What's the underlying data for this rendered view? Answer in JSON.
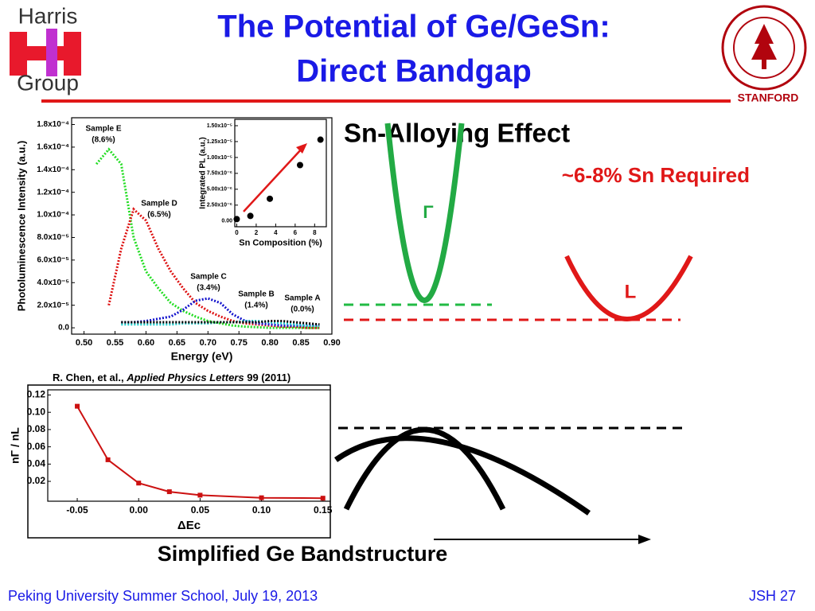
{
  "header": {
    "title_lines": [
      "The Potential of Ge/GeSn:",
      "Direct Bandgap"
    ],
    "logo_left": [
      "Harris",
      "Group"
    ],
    "logo_right": "STANFORD"
  },
  "section_title": "Sn-Alloying Effect",
  "note": "~6-8% Sn Required",
  "band_labels": {
    "gamma": "Γ",
    "l": "L"
  },
  "citation": {
    "authors": "R. Chen, et al.,",
    "journal": "Applied Physics Letters",
    "details": "99 (2011)"
  },
  "caption": "Simplified Ge Bandstructure",
  "footer": {
    "left": "Peking University Summer School, July 19, 2013",
    "right": "JSH 27"
  },
  "chart_data": [
    {
      "type": "line",
      "xlabel": "Energy (eV)",
      "ylabel": "Photoluminescence Intensity (a.u.)",
      "x": [
        0.5,
        0.52,
        0.54,
        0.56,
        0.58,
        0.6,
        0.62,
        0.64,
        0.66,
        0.68,
        0.7,
        0.72,
        0.74,
        0.76,
        0.78,
        0.8,
        0.82,
        0.84,
        0.86,
        0.88
      ],
      "series": [
        {
          "name": "Sample E",
          "annotation": "(8.6%)",
          "color": "#22dd22",
          "values": [
            null,
            0.000145,
            0.000158,
            0.000145,
            8e-05,
            5e-05,
            3.5e-05,
            2.2e-05,
            1.5e-05,
            1e-05,
            6e-06,
            4e-06,
            2e-06,
            1e-06,
            5e-07,
            0,
            0,
            0,
            0,
            0
          ]
        },
        {
          "name": "Sample D",
          "annotation": "(6.5%)",
          "color": "#dd1111",
          "values": [
            null,
            null,
            2e-05,
            7e-05,
            0.000105,
            9.5e-05,
            7e-05,
            5e-05,
            3.5e-05,
            2.2e-05,
            1.5e-05,
            1e-05,
            6e-06,
            4e-06,
            3e-06,
            2e-06,
            1e-06,
            1e-06,
            0,
            0
          ]
        },
        {
          "name": "Sample C",
          "annotation": "(3.4%)",
          "color": "#1111cc",
          "values": [
            null,
            null,
            null,
            5e-06,
            5e-06,
            6e-06,
            8e-06,
            1e-05,
            1.6e-05,
            2.4e-05,
            2.6e-05,
            2.2e-05,
            1.2e-05,
            6e-06,
            4e-06,
            3e-06,
            2e-06,
            2e-06,
            2e-06,
            2e-06
          ]
        },
        {
          "name": "Sample B",
          "annotation": "(1.4%)",
          "color": "#22cccc",
          "values": [
            null,
            null,
            null,
            3e-06,
            3e-06,
            3e-06,
            3e-06,
            3e-06,
            4e-06,
            4e-06,
            4e-06,
            5e-06,
            5e-06,
            6e-06,
            6e-06,
            5e-06,
            4e-06,
            3e-06,
            2e-06,
            2e-06
          ]
        },
        {
          "name": "Sample A",
          "annotation": "(0.0%)",
          "color": "#000000",
          "values": [
            null,
            null,
            null,
            5e-06,
            5e-06,
            5e-06,
            5e-06,
            5e-06,
            5e-06,
            5e-06,
            5e-06,
            5e-06,
            5e-06,
            5e-06,
            5e-06,
            6e-06,
            6e-06,
            5e-06,
            4e-06,
            3e-06
          ]
        }
      ],
      "xlim": [
        0.48,
        0.9
      ],
      "xticks": [
        {
          "value": 0.5,
          "label": "0.50"
        },
        0.55,
        {
          "value": 0.6,
          "label": "0.60"
        },
        0.65,
        {
          "value": 0.7,
          "label": "0.70"
        },
        0.75,
        {
          "value": 0.8,
          "label": "0.80"
        },
        0.85,
        {
          "value": 0.9,
          "label": "0.90"
        }
      ],
      "ylim": [
        -5.6e-06,
        0.000186
      ],
      "yticks": [
        {
          "value": 0,
          "label": "0.0"
        },
        {
          "value": 2e-05,
          "label": "2.0x10⁻⁵"
        },
        {
          "value": 4e-05,
          "label": "4.0x10⁻⁵"
        },
        {
          "value": 6e-05,
          "label": "6.0x10⁻⁵"
        },
        {
          "value": 8e-05,
          "label": "8.0x10⁻⁵"
        },
        {
          "value": 0.0001,
          "label": "1.0x10⁻⁴"
        },
        {
          "value": 0.00012,
          "label": "1.2x10⁻⁴"
        },
        {
          "value": 0.00014,
          "label": "1.4x10⁻⁴"
        },
        {
          "value": 0.00016,
          "label": "1.6x10⁻⁴"
        },
        {
          "value": 0.00018,
          "label": "1.8x10⁻⁴"
        }
      ]
    },
    {
      "type": "scatter",
      "xlabel": "Sn Composition (%)",
      "ylabel": "Integrated PL (a.u.)",
      "x": [
        0,
        1.4,
        3.4,
        6.5,
        8.6
      ],
      "values": [
        3e-07,
        8e-07,
        3.5e-06,
        8.8e-06,
        1.28e-05
      ],
      "color": "#000000",
      "xlim": [
        -0.2,
        9.2
      ],
      "xticks": [
        0,
        2,
        4,
        6,
        8
      ],
      "ylim": [
        -9e-07,
        1.6e-05
      ],
      "yticks": [
        {
          "value": 0,
          "label": "0.00"
        },
        {
          "value": 2.5e-06,
          "label": "2.50x10⁻⁶"
        },
        {
          "value": 5e-06,
          "label": "5.00x10⁻⁶"
        },
        {
          "value": 7.5e-06,
          "label": "7.50x10⁻⁶"
        },
        {
          "value": 1e-05,
          "label": "1.00x10⁻⁵"
        },
        {
          "value": 1.25e-05,
          "label": "1.25x10⁻⁵"
        },
        {
          "value": 1.5e-05,
          "label": "1.50x10⁻⁵"
        }
      ]
    },
    {
      "type": "line",
      "xlabel": "ΔEc",
      "ylabel": "nΓ / nL",
      "x": [
        -0.05,
        -0.025,
        0,
        0.025,
        0.05,
        0.1,
        0.15
      ],
      "series": [
        {
          "color": "#cc1111",
          "values": [
            0.107,
            0.045,
            0.018,
            0.008,
            0.004,
            0.001,
            0.0005
          ]
        }
      ],
      "xlim": [
        -0.074,
        0.156
      ],
      "xticks": [
        -0.05,
        {
          "value": 0,
          "label": "0.00"
        },
        0.05,
        {
          "value": 0.1,
          "label": "0.10"
        },
        0.15
      ],
      "ylim": [
        -0.003,
        0.126
      ],
      "yticks": [
        0.12,
        {
          "value": 0.1,
          "label": "0.10"
        },
        0.08,
        0.06,
        0.04,
        0.02
      ]
    }
  ]
}
